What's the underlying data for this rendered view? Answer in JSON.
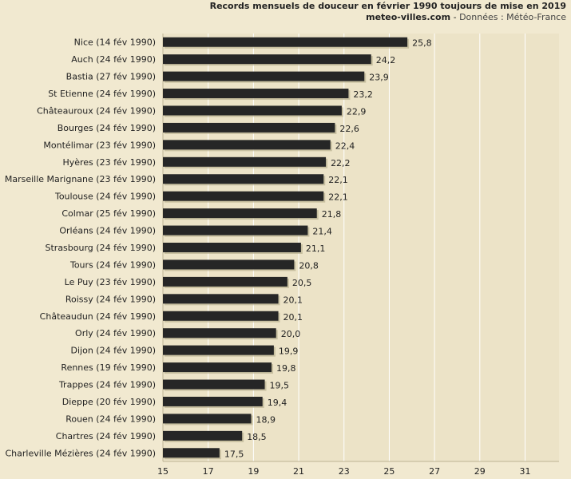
{
  "chart_data": {
    "type": "bar",
    "orientation": "horizontal",
    "title": "Records mensuels de douceur en février 1990 toujours de mise en 2019",
    "subtitle_site": "meteo-villes.com",
    "subtitle_sep": " - ",
    "subtitle_source": "Données : Météo-France",
    "categories": [
      "Nice (14 fév 1990)",
      "Auch (24 fév 1990)",
      "Bastia (27 fév 1990)",
      "St Etienne (24 fév 1990)",
      "Châteauroux (24 fév 1990)",
      "Bourges (24 fév 1990)",
      "Montélimar (23 fév 1990)",
      "Hyères (23 fév 1990)",
      "Marseille Marignane (23 fév 1990)",
      "Toulouse (24 fév 1990)",
      "Colmar (25 fév 1990)",
      "Orléans (24 fév 1990)",
      "Strasbourg (24 fév 1990)",
      "Tours (24 fév 1990)",
      "Le Puy (23 fév 1990)",
      "Roissy (24 fév 1990)",
      "Châteaudun (24 fév 1990)",
      "Orly (24 fév 1990)",
      "Dijon (24 fév 1990)",
      "Rennes (19 fév 1990)",
      "Trappes (24 fév 1990)",
      "Dieppe (20 fév 1990)",
      "Rouen (24 fév 1990)",
      "Chartres (24 fév 1990)",
      "Charleville Mézières (24 fév 1990)"
    ],
    "values": [
      25.8,
      24.2,
      23.9,
      23.2,
      22.9,
      22.6,
      22.4,
      22.2,
      22.1,
      22.1,
      21.8,
      21.4,
      21.1,
      20.8,
      20.5,
      20.1,
      20.1,
      20.0,
      19.9,
      19.8,
      19.5,
      19.4,
      18.9,
      18.5,
      17.5
    ],
    "value_labels": [
      "25,8",
      "24,2",
      "23,9",
      "23,2",
      "22,9",
      "22,6",
      "22,4",
      "22,2",
      "22,1",
      "22,1",
      "21,8",
      "21,4",
      "21,1",
      "20,8",
      "20,5",
      "20,1",
      "20,1",
      "20,0",
      "19,9",
      "19,8",
      "19,5",
      "19,4",
      "18,9",
      "18,5",
      "17,5"
    ],
    "xlim": [
      15,
      32.5
    ],
    "xticks": [
      15,
      17,
      19,
      21,
      23,
      25,
      27,
      29,
      31
    ],
    "xlabel": "",
    "ylabel": "",
    "grid": true,
    "bar_color": "#262626",
    "grid_color": "#ffffff",
    "background_color": "#f1e9d0"
  }
}
